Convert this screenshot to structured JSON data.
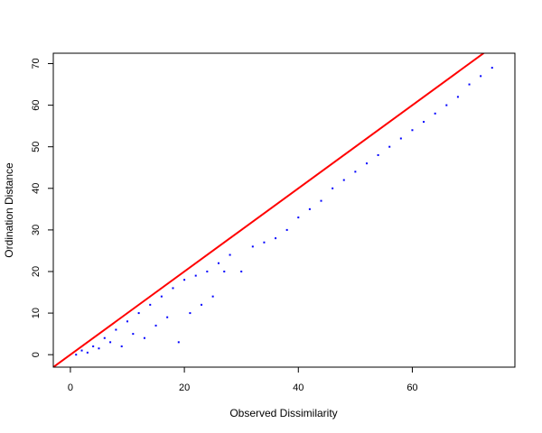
{
  "chart_data": {
    "type": "scatter",
    "title": "",
    "xlabel": "Observed Dissimilarity",
    "ylabel": "Ordination Distance",
    "xlim": [
      -3,
      78
    ],
    "ylim": [
      -3,
      72.5
    ],
    "x_ticks": [
      0,
      20,
      40,
      60
    ],
    "y_ticks": [
      0,
      10,
      20,
      30,
      40,
      50,
      60,
      70
    ],
    "grid": false,
    "legend": "none",
    "point_color": "#0000ff",
    "reference_line": {
      "label": "",
      "intercept": 0,
      "slope": 1,
      "color": "#ff0000"
    },
    "series": [
      {
        "values": [
          [
            1,
            0
          ],
          [
            2,
            1
          ],
          [
            3,
            0.5
          ],
          [
            4,
            2
          ],
          [
            5,
            1.5
          ],
          [
            6,
            4
          ],
          [
            7,
            3
          ],
          [
            8,
            6
          ],
          [
            9,
            2
          ],
          [
            10,
            8
          ],
          [
            11,
            5
          ],
          [
            12,
            10
          ],
          [
            13,
            4
          ],
          [
            14,
            12
          ],
          [
            15,
            7
          ],
          [
            16,
            14
          ],
          [
            17,
            9
          ],
          [
            18,
            16
          ],
          [
            19,
            3
          ],
          [
            20,
            18
          ],
          [
            21,
            10
          ],
          [
            22,
            19
          ],
          [
            23,
            12
          ],
          [
            24,
            20
          ],
          [
            25,
            14
          ],
          [
            26,
            22
          ],
          [
            27,
            20
          ],
          [
            28,
            24
          ],
          [
            30,
            20
          ],
          [
            32,
            26
          ],
          [
            34,
            27
          ],
          [
            36,
            28
          ],
          [
            38,
            30
          ],
          [
            40,
            33
          ],
          [
            42,
            35
          ],
          [
            44,
            37
          ],
          [
            46,
            40
          ],
          [
            48,
            42
          ],
          [
            50,
            44
          ],
          [
            52,
            46
          ],
          [
            54,
            48
          ],
          [
            56,
            50
          ],
          [
            58,
            52
          ],
          [
            60,
            54
          ],
          [
            62,
            56
          ],
          [
            64,
            58
          ],
          [
            66,
            60
          ],
          [
            68,
            62
          ],
          [
            70,
            65
          ],
          [
            72,
            67
          ],
          [
            74,
            69
          ]
        ]
      }
    ]
  }
}
